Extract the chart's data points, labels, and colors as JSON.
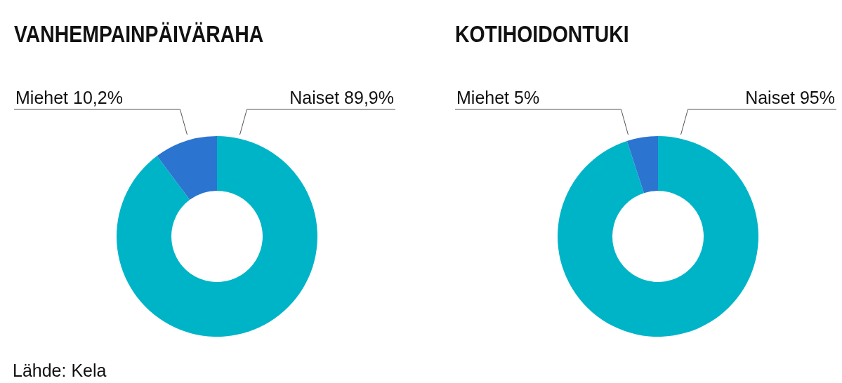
{
  "chart_data": [
    {
      "type": "donut",
      "title": "VANHEMPAINPÄIVÄRAHA",
      "categories": [
        "Naiset",
        "Miehet"
      ],
      "values": [
        89.9,
        10.2
      ],
      "colors": [
        "#00b4c8",
        "#2b74d0"
      ],
      "value_labels": [
        "89,9%",
        "10,2%"
      ],
      "legend": false,
      "annotations": [
        "Lähde: Kela"
      ]
    },
    {
      "type": "donut",
      "title": "KOTIHOIDONTUKI",
      "categories": [
        "Naiset",
        "Miehet"
      ],
      "values": [
        95,
        5
      ],
      "colors": [
        "#00b4c8",
        "#2b74d0"
      ],
      "value_labels": [
        "95%",
        "5%"
      ],
      "legend": false
    }
  ]
}
